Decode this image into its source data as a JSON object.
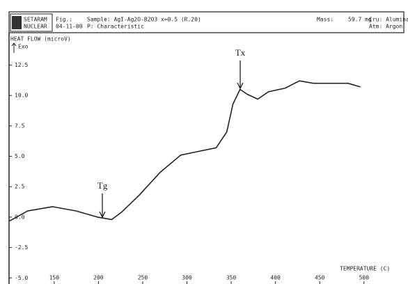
{
  "header": {
    "logo": [
      "SETARAM",
      "NUCLEAR"
    ],
    "fig_label": "Fig.:",
    "date": "04-11-00",
    "sample": "Sample: AgI-Ag2O-B2O3 x=0.5 (R.20)",
    "program": "P: Characteristic",
    "mass_label": "Mass:",
    "mass": "59.7 mg",
    "crucible": "Cru: Alumina",
    "atmosphere": "Atm: Argon"
  },
  "chart_data": {
    "type": "line",
    "y_label": "HEAT FLOW (microV)",
    "exo_label": "Exo",
    "x_label": "TEMPERATURE (C)",
    "x": [
      99,
      120,
      148,
      175,
      199,
      215,
      226,
      246,
      270,
      293,
      313,
      333,
      345,
      352,
      360,
      368,
      380,
      392,
      411,
      427,
      443,
      466,
      482,
      496
    ],
    "series": [
      {
        "name": "Heat flow",
        "color": "#222222",
        "values": [
          -0.34,
          0.5,
          0.86,
          0.5,
          0,
          -0.2,
          0.4,
          1.8,
          3.7,
          5.1,
          5.4,
          5.7,
          7.0,
          9.3,
          10.5,
          10.1,
          9.7,
          10.3,
          10.6,
          11.2,
          11.0,
          11.0,
          11.0,
          10.7
        ]
      }
    ],
    "xlim": [
      99,
      545
    ],
    "xticks": [
      150,
      200,
      250,
      300,
      350,
      400,
      450,
      500
    ],
    "ylim": [
      -5.5,
      14.7
    ],
    "yticks": [
      12.5,
      {
        "value": 10,
        "label": "10.0"
      },
      7.5,
      {
        "value": 5,
        "label": "5.0"
      },
      2.5,
      {
        "value": 0,
        "label": "0.0"
      },
      -2.5,
      {
        "value": -5,
        "label": "-5.0"
      }
    ],
    "annotations": [
      "Tg",
      "Tx"
    ]
  }
}
